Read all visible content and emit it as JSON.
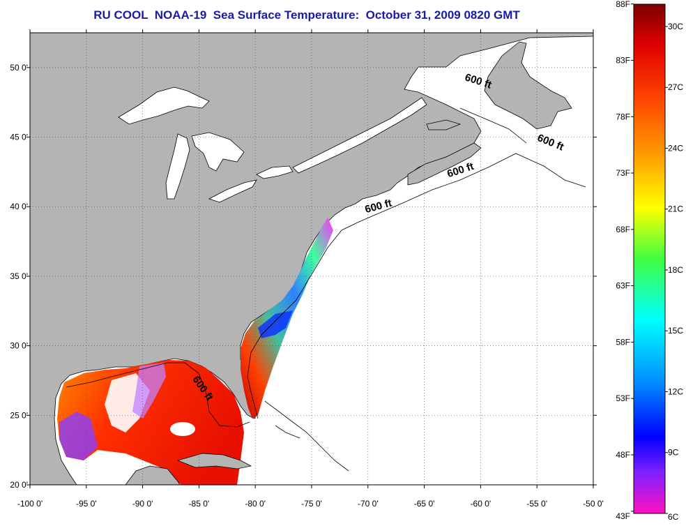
{
  "title": "RU COOL  NOAA-19  Sea Surface Temperature:  October 31, 2009 0820 GMT",
  "map": {
    "lon_range": [
      -100,
      -50
    ],
    "lat_range": [
      20,
      52.5
    ],
    "lon_ticks": [
      "-100 0'",
      "-95 0'",
      "-90 0'",
      "-85 0'",
      "-80 0'",
      "-75 0'",
      "-70 0'",
      "-65 0'",
      "-60 0'",
      "-55 0'",
      "-50 0'"
    ],
    "lat_ticks": [
      {
        "lat": 50,
        "label": "50 0'"
      },
      {
        "lat": 45,
        "label": "45 0'"
      },
      {
        "lat": 40,
        "label": "40 0'"
      },
      {
        "lat": 35,
        "label": "35 0'"
      },
      {
        "lat": 30,
        "label": "30 0'"
      },
      {
        "lat": 25,
        "label": "25 0'"
      },
      {
        "lat": 20,
        "label": "20 0'"
      }
    ],
    "grid": "dotted",
    "contour_labels": [
      {
        "text": "600 ft",
        "lon": -60.3,
        "lat": 48.8,
        "rotate": 18
      },
      {
        "text": "600 ft",
        "lon": -53.9,
        "lat": 44.4,
        "rotate": 22
      },
      {
        "text": "600 ft",
        "lon": -61.7,
        "lat": 42.4,
        "rotate": -18
      },
      {
        "text": "600 ft",
        "lon": -69.0,
        "lat": 39.8,
        "rotate": -15
      },
      {
        "text": "600 ft",
        "lon": -84.9,
        "lat": 26.8,
        "rotate": 55
      }
    ],
    "colors": {
      "land": "#b4b4b4",
      "ocean_no_data": "#ffffff"
    }
  },
  "colorbar": {
    "fahrenheit": [
      "88F",
      "83F",
      "78F",
      "73F",
      "68F",
      "63F",
      "58F",
      "53F",
      "48F",
      "43F"
    ],
    "celsius": [
      "30C",
      "27C",
      "24C",
      "21C",
      "18C",
      "15C",
      "12C",
      "9C",
      "6C"
    ],
    "range_c": [
      6,
      31.1
    ],
    "gradient": [
      "#8b0000",
      "#ff0000",
      "#ff7f00",
      "#ffff00",
      "#00ff00",
      "#00ffff",
      "#0080ff",
      "#0000ff",
      "#8000ff",
      "#ff00ff"
    ]
  }
}
